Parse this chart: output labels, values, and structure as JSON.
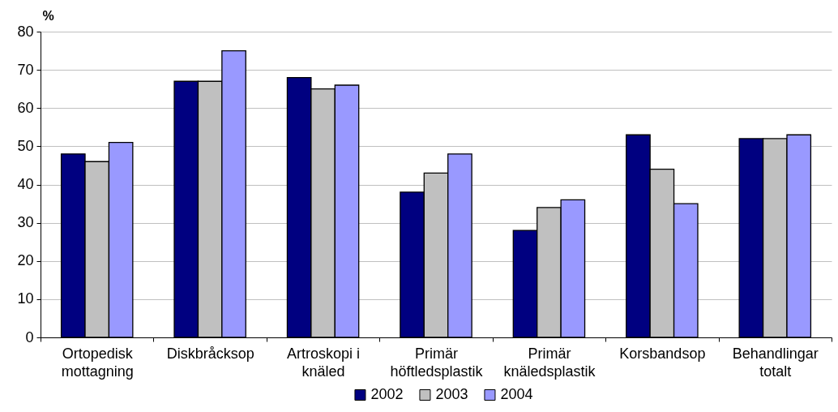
{
  "chart_data": {
    "type": "bar",
    "ylabel": "%",
    "categories": [
      "Ortopedisk mottagning",
      "Diskbråcksop",
      "Artroskopi i knäled",
      "Primär höftledsplastik",
      "Primär knäledsplastik",
      "Korsbandsop",
      "Behandlingar totalt"
    ],
    "series": [
      {
        "name": "2002",
        "color": "#000080",
        "values": [
          48,
          67,
          68,
          38,
          28,
          53,
          52
        ]
      },
      {
        "name": "2003",
        "color": "#c0c0c0",
        "values": [
          46,
          67,
          65,
          43,
          34,
          44,
          52
        ]
      },
      {
        "name": "2004",
        "color": "#9999ff",
        "values": [
          51,
          75,
          66,
          48,
          36,
          35,
          53
        ]
      }
    ],
    "ylim": [
      0,
      80
    ],
    "yticks": [
      0,
      10,
      20,
      30,
      40,
      50,
      60,
      70,
      80
    ],
    "grid": "y",
    "legend": "bottom"
  }
}
